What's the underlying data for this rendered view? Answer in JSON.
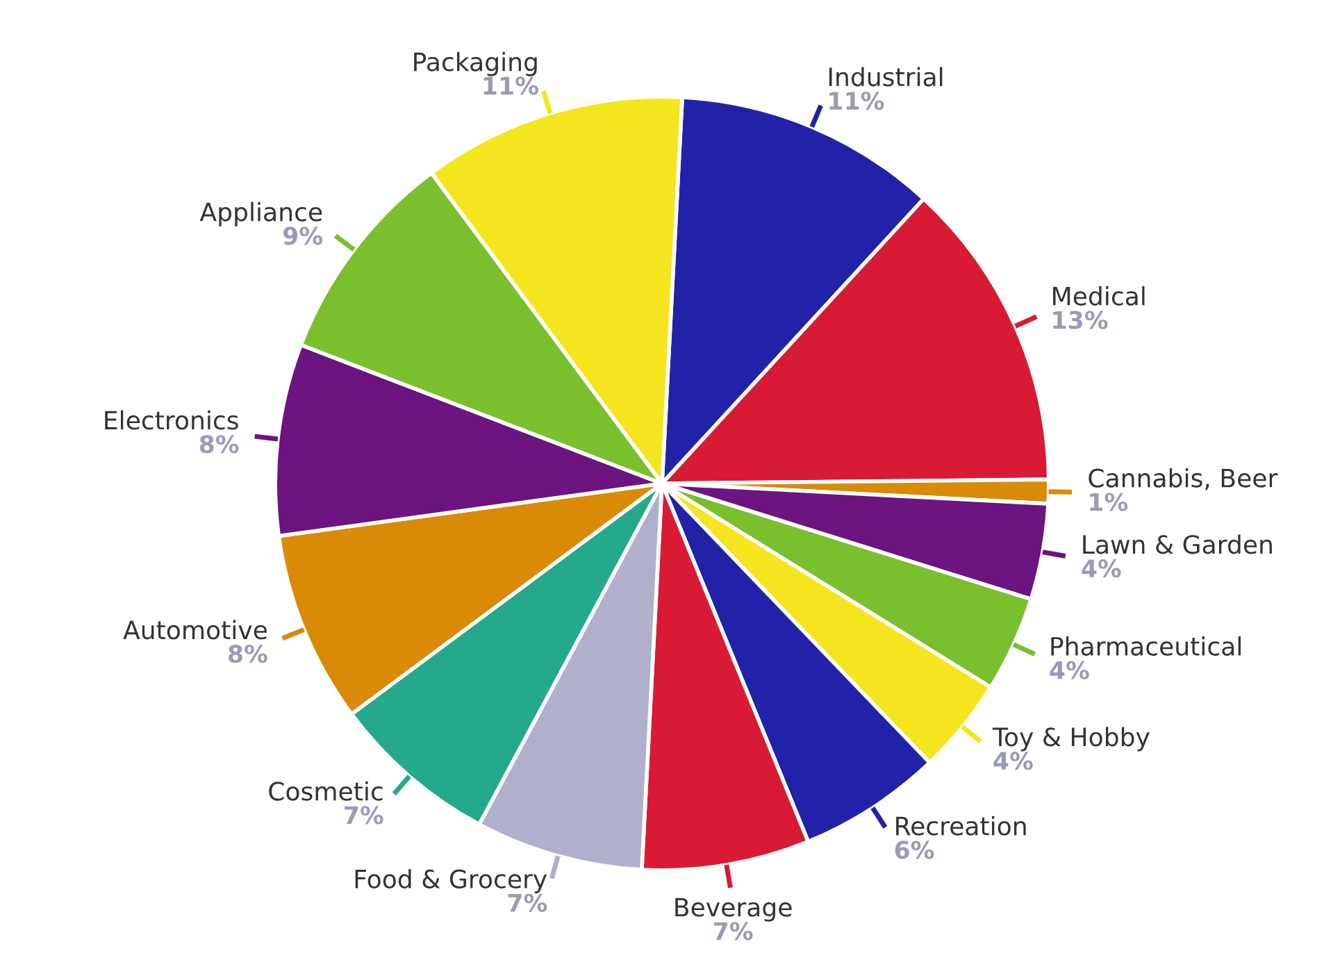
{
  "chart_data": {
    "type": "pie",
    "categories": [
      "Industrial",
      "Medical",
      "Cannabis, Beer",
      "Lawn & Garden",
      "Pharmaceutical",
      "Toy & Hobby",
      "Recreation",
      "Beverage",
      "Food & Grocery",
      "Cosmetic",
      "Automotive",
      "Electronics",
      "Appliance",
      "Packaging"
    ],
    "values": [
      11,
      13,
      1,
      4,
      4,
      4,
      6,
      7,
      7,
      7,
      8,
      8,
      9,
      11
    ],
    "value_labels": [
      "11%",
      "13%",
      "1%",
      "4%",
      "4%",
      "4%",
      "6%",
      "7%",
      "7%",
      "7%",
      "8%",
      "8%",
      "9%",
      "11%"
    ],
    "colors": [
      "#2222a8",
      "#d91a35",
      "#d98a06",
      "#6c1480",
      "#7abf2e",
      "#f5e51e",
      "#2222a8",
      "#d91a35",
      "#b0b0cc",
      "#24a98a",
      "#d98a06",
      "#6c1480",
      "#7abf2e",
      "#f5e51e"
    ]
  }
}
